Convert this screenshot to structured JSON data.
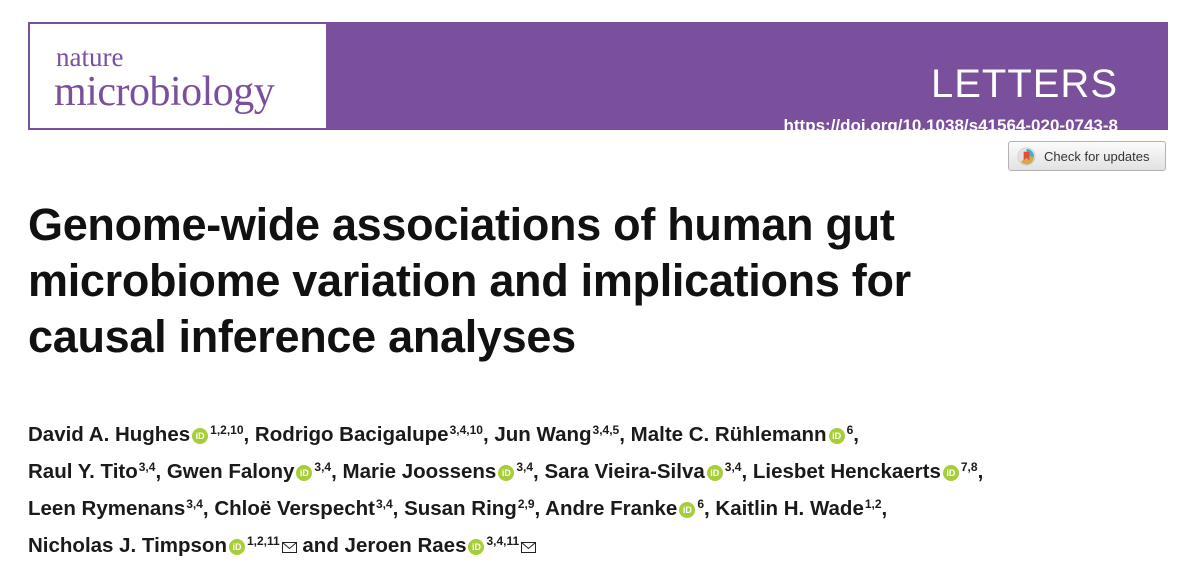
{
  "journal": {
    "logo_line1": "nature",
    "logo_line2": "microbiology"
  },
  "section": "LETTERS",
  "doi": "https://doi.org/10.1038/s41564-020-0743-8",
  "check_updates_label": "Check for updates",
  "title_lines": [
    "Genome-wide associations of human gut",
    "microbiome variation and implications for",
    "causal inference analyses"
  ],
  "orcid_label": "iD",
  "conjunction": "and",
  "authors": [
    {
      "name": "David A. Hughes",
      "sup": "1,2,10",
      "orcid": true
    },
    {
      "name": "Rodrigo Bacigalupe",
      "sup": "3,4,10"
    },
    {
      "name": "Jun Wang",
      "sup": "3,4,5"
    },
    {
      "name": "Malte C. Rühlemann",
      "sup": "6",
      "orcid": true
    },
    {
      "name": "Raul Y. Tito",
      "sup": "3,4"
    },
    {
      "name": "Gwen Falony",
      "sup": "3,4",
      "orcid": true
    },
    {
      "name": "Marie Joossens",
      "sup": "3,4",
      "orcid": true
    },
    {
      "name": "Sara Vieira-Silva",
      "sup": "3,4",
      "orcid": true
    },
    {
      "name": "Liesbet Henckaerts",
      "sup": "7,8",
      "orcid": true
    },
    {
      "name": "Leen Rymenans",
      "sup": "3,4"
    },
    {
      "name": "Chloë Verspecht",
      "sup": "3,4"
    },
    {
      "name": "Susan Ring",
      "sup": "2,9"
    },
    {
      "name": "Andre Franke",
      "sup": "6",
      "orcid": true
    },
    {
      "name": "Kaitlin H. Wade",
      "sup": "1,2"
    },
    {
      "name": "Nicholas J. Timpson",
      "sup": "1,2,11",
      "orcid": true,
      "mail": true
    },
    {
      "name": "Jeroen Raes",
      "sup": "3,4,11",
      "orcid": true,
      "mail": true
    }
  ]
}
